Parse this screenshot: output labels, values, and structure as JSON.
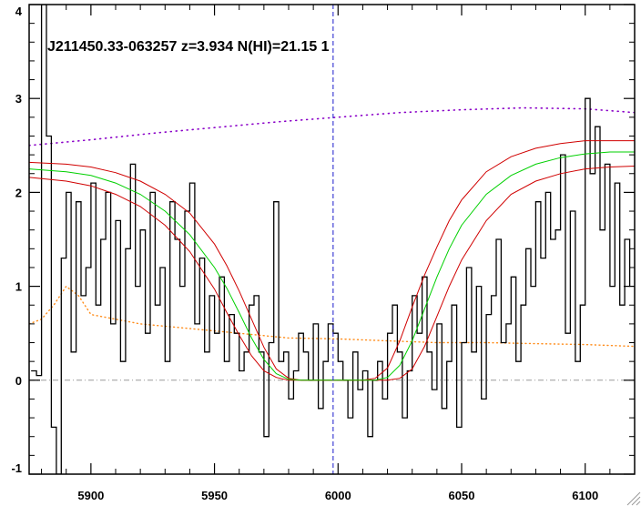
{
  "chart_data": {
    "type": "line",
    "title": "J211450.33-063257 z=3.934 N(HI)=21.15 1",
    "xlim": [
      5875,
      6120
    ],
    "ylim": [
      -1,
      4
    ],
    "xticks": [
      5900,
      5950,
      6000,
      6050,
      6100
    ],
    "yticks": [
      -1,
      0,
      1,
      2,
      3,
      4
    ],
    "grid": false,
    "reference_line_x": 5998,
    "zero_level": 0,
    "colors": {
      "flux": "#000000",
      "model": "#00d000",
      "model_bounds": "#d00000",
      "continuum": "#8a00c8",
      "error": "#ff8c1a",
      "reference": "#1a1acc",
      "zero": "#9a9a9a"
    },
    "series": [
      {
        "role": "flux",
        "style": "step",
        "x": [
          5876,
          5878,
          5880,
          5882,
          5884,
          5886,
          5888,
          5890,
          5892,
          5894,
          5896,
          5898,
          5900,
          5902,
          5904,
          5906,
          5908,
          5910,
          5912,
          5914,
          5916,
          5918,
          5920,
          5922,
          5924,
          5926,
          5928,
          5930,
          5932,
          5934,
          5936,
          5938,
          5940,
          5942,
          5944,
          5946,
          5948,
          5950,
          5952,
          5954,
          5956,
          5958,
          5960,
          5962,
          5964,
          5966,
          5968,
          5970,
          5972,
          5974,
          5976,
          5978,
          5980,
          5982,
          5984,
          5986,
          5988,
          5990,
          5992,
          5994,
          5996,
          5998,
          6000,
          6002,
          6004,
          6006,
          6008,
          6010,
          6012,
          6014,
          6016,
          6018,
          6020,
          6022,
          6024,
          6026,
          6028,
          6030,
          6032,
          6034,
          6036,
          6038,
          6040,
          6042,
          6044,
          6046,
          6048,
          6050,
          6052,
          6054,
          6056,
          6058,
          6060,
          6062,
          6064,
          6066,
          6068,
          6070,
          6072,
          6074,
          6076,
          6078,
          6080,
          6082,
          6084,
          6086,
          6088,
          6090,
          6092,
          6094,
          6096,
          6098,
          6100,
          6102,
          6104,
          6106,
          6108,
          6110,
          6112,
          6114,
          6116,
          6118
        ],
        "y": [
          0.1,
          0.05,
          4.0,
          2.6,
          -0.5,
          -1.0,
          1.3,
          2.0,
          0.3,
          1.9,
          0.9,
          1.2,
          2.1,
          0.8,
          1.5,
          2.0,
          0.6,
          1.7,
          0.2,
          1.4,
          2.3,
          1.0,
          1.6,
          0.5,
          2.0,
          0.8,
          1.2,
          0.2,
          1.9,
          1.5,
          1.0,
          1.8,
          2.1,
          0.6,
          1.3,
          0.3,
          0.9,
          0.5,
          1.1,
          0.2,
          0.7,
          0.5,
          0.1,
          0.3,
          0.8,
          0.9,
          0.3,
          -0.6,
          0.4,
          1.9,
          0.2,
          0.3,
          -0.2,
          0.1,
          0.5,
          0.3,
          0.0,
          0.6,
          -0.3,
          0.2,
          0.6,
          0.5,
          0.2,
          0.0,
          -0.4,
          0.3,
          -0.1,
          0.1,
          -0.6,
          0.0,
          0.2,
          -0.2,
          0.5,
          0.8,
          0.3,
          -0.4,
          0.1,
          0.9,
          0.5,
          1.1,
          0.3,
          -0.1,
          0.6,
          -0.3,
          0.2,
          0.8,
          -0.5,
          0.4,
          1.2,
          0.3,
          1.0,
          -0.2,
          0.7,
          0.9,
          1.5,
          0.4,
          0.6,
          1.1,
          0.2,
          0.8,
          1.4,
          1.0,
          1.9,
          1.3,
          2.0,
          1.5,
          1.6,
          2.4,
          0.5,
          1.8,
          0.2,
          0.8,
          3.0,
          2.2,
          2.7,
          1.6,
          2.3,
          1.0,
          2.1,
          0.8,
          1.5,
          1.0
        ]
      },
      {
        "role": "model",
        "x": [
          5875,
          5890,
          5900,
          5910,
          5920,
          5930,
          5940,
          5950,
          5955,
          5960,
          5965,
          5970,
          5975,
          5980,
          5985,
          5990,
          5995,
          6000,
          6005,
          6010,
          6015,
          6020,
          6025,
          6030,
          6035,
          6040,
          6045,
          6050,
          6060,
          6070,
          6080,
          6090,
          6100,
          6110,
          6120
        ],
        "y": [
          2.25,
          2.22,
          2.18,
          2.1,
          1.98,
          1.8,
          1.55,
          1.2,
          0.98,
          0.72,
          0.45,
          0.22,
          0.07,
          0.01,
          0.0,
          0.0,
          0.0,
          0.0,
          0.0,
          0.0,
          0.0,
          0.03,
          0.16,
          0.42,
          0.76,
          1.1,
          1.4,
          1.65,
          1.98,
          2.18,
          2.3,
          2.37,
          2.41,
          2.43,
          2.43
        ]
      },
      {
        "role": "model_bounds_upper",
        "x": [
          5875,
          5890,
          5900,
          5910,
          5920,
          5930,
          5940,
          5950,
          5955,
          5960,
          5965,
          5970,
          5975,
          5980,
          5985,
          5990,
          5995,
          6000,
          6005,
          6010,
          6015,
          6020,
          6025,
          6030,
          6035,
          6040,
          6045,
          6050,
          6060,
          6070,
          6080,
          6090,
          6100,
          6110,
          6120
        ],
        "y": [
          2.32,
          2.3,
          2.27,
          2.21,
          2.12,
          1.98,
          1.78,
          1.45,
          1.22,
          0.95,
          0.65,
          0.35,
          0.12,
          0.02,
          0.0,
          0.0,
          0.0,
          0.0,
          0.0,
          0.0,
          0.02,
          0.13,
          0.42,
          0.78,
          1.12,
          1.42,
          1.7,
          1.92,
          2.22,
          2.38,
          2.47,
          2.52,
          2.55,
          2.55,
          2.55
        ]
      },
      {
        "role": "model_bounds_lower",
        "x": [
          5875,
          5890,
          5900,
          5910,
          5920,
          5930,
          5940,
          5950,
          5955,
          5960,
          5965,
          5970,
          5975,
          5980,
          5985,
          5990,
          5995,
          6000,
          6005,
          6010,
          6015,
          6020,
          6025,
          6030,
          6035,
          6040,
          6045,
          6050,
          6060,
          6070,
          6080,
          6090,
          6100,
          6110,
          6120
        ],
        "y": [
          2.16,
          2.12,
          2.07,
          1.98,
          1.85,
          1.65,
          1.37,
          0.97,
          0.72,
          0.48,
          0.26,
          0.1,
          0.03,
          0.0,
          0.0,
          0.0,
          0.0,
          0.0,
          0.0,
          0.0,
          0.0,
          0.0,
          0.02,
          0.12,
          0.36,
          0.68,
          1.0,
          1.28,
          1.7,
          1.98,
          2.12,
          2.2,
          2.25,
          2.27,
          2.28
        ]
      },
      {
        "role": "continuum",
        "style": "dotted",
        "x": [
          5875,
          5900,
          5925,
          5950,
          5975,
          6000,
          6025,
          6050,
          6075,
          6100,
          6120
        ],
        "y": [
          2.5,
          2.56,
          2.63,
          2.69,
          2.75,
          2.8,
          2.85,
          2.88,
          2.9,
          2.89,
          2.85
        ]
      },
      {
        "role": "error",
        "style": "dotted",
        "x": [
          5875,
          5880,
          5885,
          5890,
          5895,
          5900,
          5920,
          5940,
          5960,
          5980,
          6000,
          6020,
          6040,
          6060,
          6080,
          6100,
          6120
        ],
        "y": [
          0.6,
          0.65,
          0.8,
          1.0,
          0.9,
          0.7,
          0.6,
          0.55,
          0.5,
          0.45,
          0.44,
          0.42,
          0.4,
          0.4,
          0.39,
          0.38,
          0.36
        ]
      }
    ]
  }
}
